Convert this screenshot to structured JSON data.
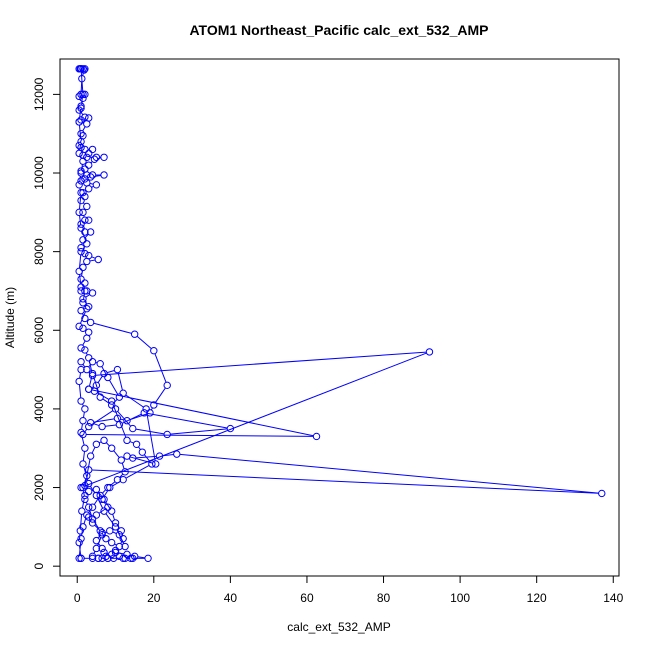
{
  "chart_data": {
    "type": "line",
    "title": "ATOM1 Northeast_Pacific calc_ext_532_AMP",
    "xlabel": "calc_ext_532_AMP",
    "ylabel": "Altitude (m)",
    "xlim": [
      -4.5,
      141.5
    ],
    "ylim": [
      -250,
      12900
    ],
    "x_ticks": [
      0,
      20,
      40,
      60,
      80,
      100,
      120,
      140
    ],
    "y_ticks": [
      0,
      2000,
      4000,
      6000,
      8000,
      10000,
      12000
    ],
    "x_tick_labels": [
      "0",
      "20",
      "40",
      "60",
      "80",
      "100",
      "120",
      "140"
    ],
    "y_tick_labels": [
      "0",
      "2000",
      "4000",
      "6000",
      "8000",
      "10000",
      "12000"
    ],
    "grid": false,
    "legend": "none",
    "marker": "open circle",
    "series_color": "#0000ff",
    "series": [
      {
        "points": [
          [
            1.5,
            12650
          ],
          [
            1.0,
            12650
          ],
          [
            2.0,
            12650
          ],
          [
            0.8,
            12650
          ],
          [
            1.8,
            12620
          ],
          [
            1.2,
            12400
          ],
          [
            1.0,
            12000
          ],
          [
            2.0,
            12000
          ],
          [
            0.5,
            11950
          ],
          [
            1.5,
            11900
          ],
          [
            1.0,
            11650
          ],
          [
            0.5,
            11600
          ],
          [
            2.0,
            11420
          ],
          [
            3.0,
            11400
          ],
          [
            1.0,
            11350
          ],
          [
            0.5,
            11300
          ],
          [
            2.5,
            11250
          ],
          [
            1.0,
            11000
          ],
          [
            1.5,
            10950
          ],
          [
            0.5,
            10700
          ],
          [
            1.0,
            10650
          ],
          [
            2.0,
            10600
          ],
          [
            4.0,
            10600
          ],
          [
            3.0,
            10500
          ],
          [
            1.5,
            10450
          ],
          [
            2.5,
            10400
          ],
          [
            5.0,
            10400
          ],
          [
            7.0,
            10400
          ],
          [
            4.5,
            10350
          ],
          [
            3.0,
            10200
          ],
          [
            2.0,
            10100
          ],
          [
            1.0,
            10050
          ],
          [
            2.5,
            9950
          ],
          [
            4.0,
            9950
          ],
          [
            7.0,
            9950
          ],
          [
            3.5,
            9900
          ],
          [
            2.0,
            9850
          ],
          [
            1.0,
            9800
          ],
          [
            2.5,
            9750
          ],
          [
            5.0,
            9700
          ],
          [
            3.0,
            9600
          ],
          [
            1.5,
            9500
          ],
          [
            2.0,
            9400
          ],
          [
            1.0,
            9300
          ],
          [
            2.5,
            9150
          ],
          [
            1.5,
            9000
          ],
          [
            2.0,
            8800
          ],
          [
            3.0,
            8800
          ],
          [
            1.0,
            8700
          ],
          [
            2.0,
            8500
          ],
          [
            3.5,
            8500
          ],
          [
            1.5,
            8300
          ],
          [
            1.0,
            8100
          ],
          [
            2.0,
            7950
          ],
          [
            3.0,
            7900
          ],
          [
            5.5,
            7800
          ],
          [
            2.5,
            7750
          ],
          [
            1.5,
            7600
          ],
          [
            1.0,
            7300
          ],
          [
            2.0,
            7200
          ],
          [
            1.0,
            7000
          ],
          [
            2.5,
            7000
          ],
          [
            4.0,
            6950
          ],
          [
            1.5,
            6800
          ],
          [
            3.0,
            6600
          ],
          [
            1.0,
            6500
          ],
          [
            2.0,
            6300
          ],
          [
            3.5,
            6200
          ],
          [
            15.0,
            5900
          ],
          [
            20.0,
            5480
          ],
          [
            23.5,
            4600
          ],
          [
            20.0,
            4100
          ],
          [
            19.0,
            3900
          ],
          [
            13.0,
            3700
          ],
          [
            10.5,
            3760
          ],
          [
            3.5,
            3650
          ],
          [
            6.5,
            3550
          ],
          [
            11.0,
            3600
          ],
          [
            17.5,
            3900
          ],
          [
            40.0,
            3500
          ],
          [
            23.5,
            3350
          ],
          [
            14.5,
            3500
          ],
          [
            10.0,
            4000
          ],
          [
            3.0,
            3550
          ],
          [
            1.5,
            3350
          ],
          [
            62.5,
            3300
          ],
          [
            3.0,
            4500
          ],
          [
            5.0,
            4600
          ],
          [
            7.0,
            4900
          ],
          [
            10.5,
            5000
          ],
          [
            12.0,
            4400
          ],
          [
            18.0,
            4000
          ],
          [
            20.5,
            2600
          ],
          [
            13.0,
            2800
          ],
          [
            14.5,
            2750
          ],
          [
            21.5,
            2800
          ],
          [
            26.0,
            2850
          ],
          [
            137.0,
            1850
          ],
          [
            3.0,
            2450
          ],
          [
            2.0,
            2050
          ],
          [
            1.0,
            2000
          ],
          [
            92.0,
            5450
          ],
          [
            4.0,
            4850
          ],
          [
            3.0,
            5300
          ],
          [
            2.0,
            5500
          ],
          [
            1.0,
            5550
          ],
          [
            2.5,
            5800
          ],
          [
            3.0,
            5950
          ],
          [
            1.5,
            6050
          ],
          [
            0.5,
            6100
          ],
          [
            2.5,
            6550
          ],
          [
            1.5,
            6700
          ],
          [
            2.0,
            7000
          ],
          [
            1.0,
            7100
          ],
          [
            0.5,
            7500
          ],
          [
            1.0,
            8000
          ],
          [
            2.5,
            8200
          ],
          [
            1.0,
            8600
          ],
          [
            0.5,
            9000
          ],
          [
            1.0,
            9500
          ],
          [
            0.5,
            9700
          ],
          [
            1.0,
            10000
          ],
          [
            1.5,
            10300
          ],
          [
            0.5,
            10500
          ],
          [
            1.0,
            10800
          ],
          [
            0.5,
            11300
          ],
          [
            1.0,
            11700
          ],
          [
            1.5,
            12000
          ],
          [
            1.0,
            12650
          ],
          [
            0.5,
            12650
          ]
        ]
      },
      {
        "points": [
          [
            1.0,
            5200
          ],
          [
            2.5,
            5000
          ],
          [
            4.0,
            5200
          ],
          [
            6.0,
            5150
          ],
          [
            8.0,
            4800
          ],
          [
            11.0,
            4300
          ],
          [
            9.0,
            4100
          ],
          [
            6.0,
            4300
          ],
          [
            4.0,
            4900
          ],
          [
            3.0,
            4500
          ],
          [
            4.5,
            4450
          ],
          [
            9.0,
            4200
          ],
          [
            13.0,
            3200
          ],
          [
            15.5,
            3100
          ],
          [
            17.0,
            2900
          ],
          [
            19.5,
            2600
          ],
          [
            12.0,
            2200
          ],
          [
            8.5,
            2000
          ],
          [
            6.5,
            1700
          ],
          [
            8.0,
            1500
          ],
          [
            5.0,
            1300
          ],
          [
            3.0,
            1250
          ],
          [
            4.0,
            1100
          ],
          [
            6.5,
            850
          ],
          [
            5.0,
            650
          ],
          [
            6.5,
            450
          ],
          [
            7.0,
            350
          ],
          [
            9.5,
            200
          ],
          [
            10.0,
            350
          ],
          [
            13.0,
            300
          ],
          [
            15.0,
            250
          ],
          [
            18.5,
            200
          ],
          [
            14.0,
            200
          ],
          [
            12.5,
            200
          ],
          [
            11.0,
            250
          ],
          [
            10.0,
            400
          ],
          [
            9.0,
            300
          ],
          [
            8.0,
            200
          ],
          [
            7.5,
            250
          ],
          [
            6.5,
            200
          ],
          [
            5.5,
            200
          ],
          [
            4.0,
            250
          ],
          [
            5.0,
            450
          ],
          [
            6.5,
            800
          ],
          [
            8.5,
            900
          ],
          [
            11.0,
            800
          ],
          [
            12.5,
            500
          ],
          [
            10.0,
            1000
          ],
          [
            7.0,
            1400
          ],
          [
            5.0,
            1800
          ],
          [
            3.0,
            2100
          ],
          [
            1.5,
            2600
          ],
          [
            2.0,
            3000
          ],
          [
            1.0,
            3400
          ],
          [
            1.5,
            3700
          ],
          [
            2.0,
            4000
          ],
          [
            1.0,
            4200
          ],
          [
            0.5,
            4700
          ],
          [
            1.0,
            5000
          ]
        ]
      },
      {
        "points": [
          [
            1.0,
            200
          ],
          [
            0.5,
            600
          ],
          [
            0.8,
            900
          ],
          [
            1.2,
            1400
          ],
          [
            2.0,
            1800
          ],
          [
            3.0,
            1900
          ],
          [
            5.0,
            1950
          ],
          [
            7.0,
            1700
          ],
          [
            9.0,
            1400
          ],
          [
            10.0,
            1100
          ],
          [
            11.5,
            900
          ],
          [
            12.0,
            700
          ],
          [
            11.0,
            500
          ],
          [
            9.0,
            600
          ],
          [
            7.5,
            700
          ],
          [
            6.0,
            900
          ],
          [
            4.0,
            1200
          ],
          [
            3.0,
            1500
          ],
          [
            2.0,
            1700
          ],
          [
            1.5,
            2000
          ],
          [
            2.5,
            2300
          ],
          [
            3.5,
            2800
          ],
          [
            5.0,
            3100
          ],
          [
            7.0,
            3200
          ],
          [
            9.0,
            3000
          ],
          [
            11.5,
            2700
          ],
          [
            12.5,
            2400
          ],
          [
            10.5,
            2200
          ],
          [
            8.0,
            2000
          ],
          [
            6.0,
            1800
          ],
          [
            4.0,
            1500
          ],
          [
            2.5,
            1300
          ],
          [
            1.5,
            1000
          ],
          [
            1.0,
            700
          ],
          [
            0.5,
            200
          ],
          [
            1.0,
            200
          ],
          [
            4.0,
            200
          ],
          [
            5.5,
            200
          ],
          [
            8.0,
            200
          ],
          [
            12.0,
            200
          ],
          [
            14.5,
            200
          ]
        ]
      }
    ]
  }
}
